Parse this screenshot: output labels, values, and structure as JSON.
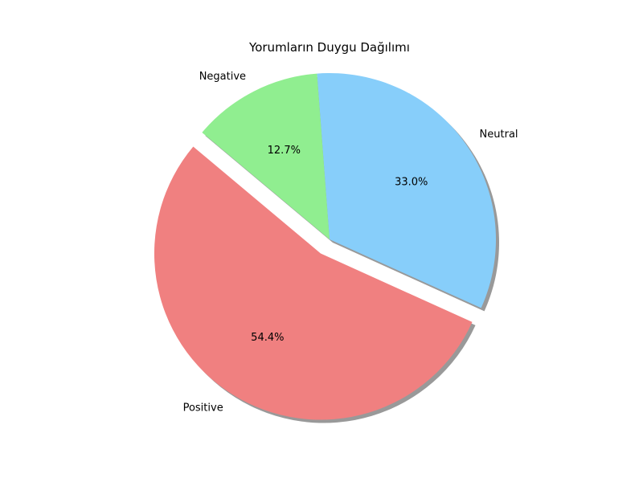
{
  "chart_data": {
    "type": "pie",
    "title": "Yorumların Duygu Dağılımı",
    "slices": [
      {
        "label": "Positive",
        "value": 54.4,
        "pct_label": "54.4%",
        "color": "#f08080",
        "exploded": true
      },
      {
        "label": "Neutral",
        "value": 33.0,
        "pct_label": "33.0%",
        "color": "#87cefa",
        "exploded": false
      },
      {
        "label": "Negative",
        "value": 12.7,
        "pct_label": "12.7%",
        "color": "#90ee90",
        "exploded": false
      }
    ],
    "shadow": true,
    "legend": "none"
  }
}
